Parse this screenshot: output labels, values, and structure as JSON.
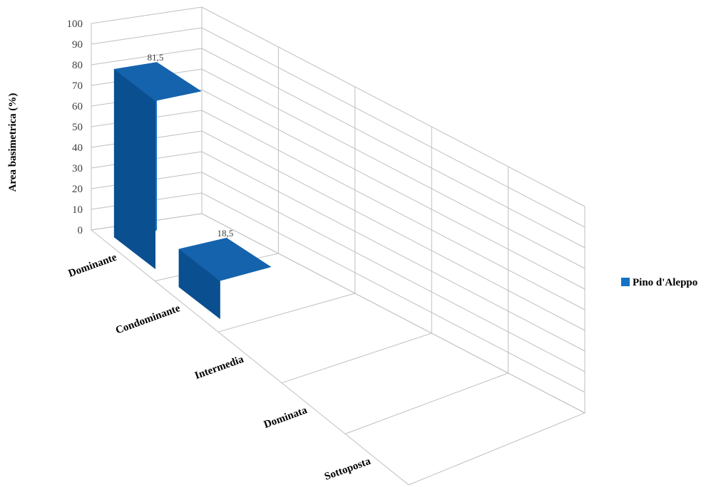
{
  "chart_data": {
    "type": "bar",
    "title": "",
    "ylabel": "Area basimetrica (%)",
    "ylim": [
      0,
      100
    ],
    "yticks": [
      0,
      10,
      20,
      30,
      40,
      50,
      60,
      70,
      80,
      90,
      100
    ],
    "categories": [
      "Dominante",
      "Condominante",
      "Intermedia",
      "Dominata",
      "Sottoposta"
    ],
    "series": [
      {
        "name": "Pino d'Aleppo",
        "values": [
          81.5,
          18.5,
          null,
          null,
          null
        ],
        "labels": [
          "81,5",
          "18,5",
          "",
          "",
          ""
        ]
      }
    ],
    "colors": {
      "front": "#1372c8",
      "side": "#0a4f8f",
      "top": "#1563ad",
      "grid": "#bfbfbf"
    },
    "grid": true,
    "legend": "right"
  }
}
